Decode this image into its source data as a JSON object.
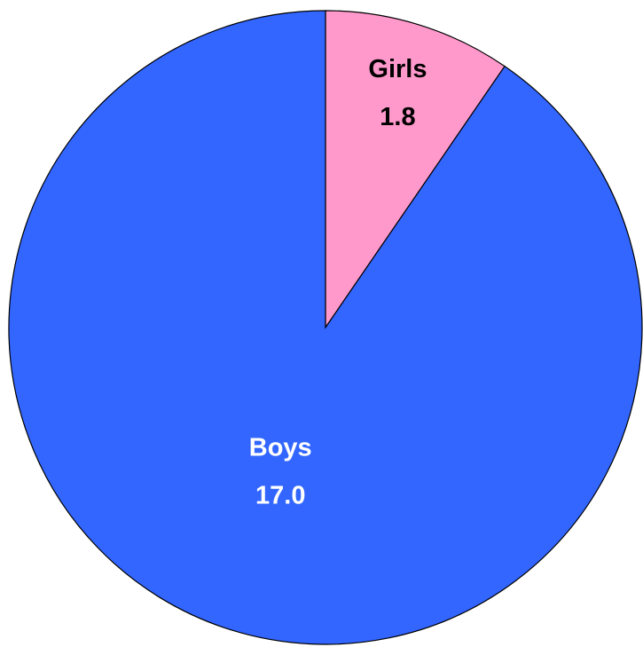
{
  "chart_data": {
    "type": "pie",
    "categories": [
      "Girls",
      "Boys"
    ],
    "values": [
      1.8,
      17
    ],
    "value_labels": [
      "1.8",
      "17.0"
    ],
    "colors": [
      "#ff99cc",
      "#3366ff"
    ],
    "label_colors": [
      "#000000",
      "#ffffff"
    ]
  }
}
